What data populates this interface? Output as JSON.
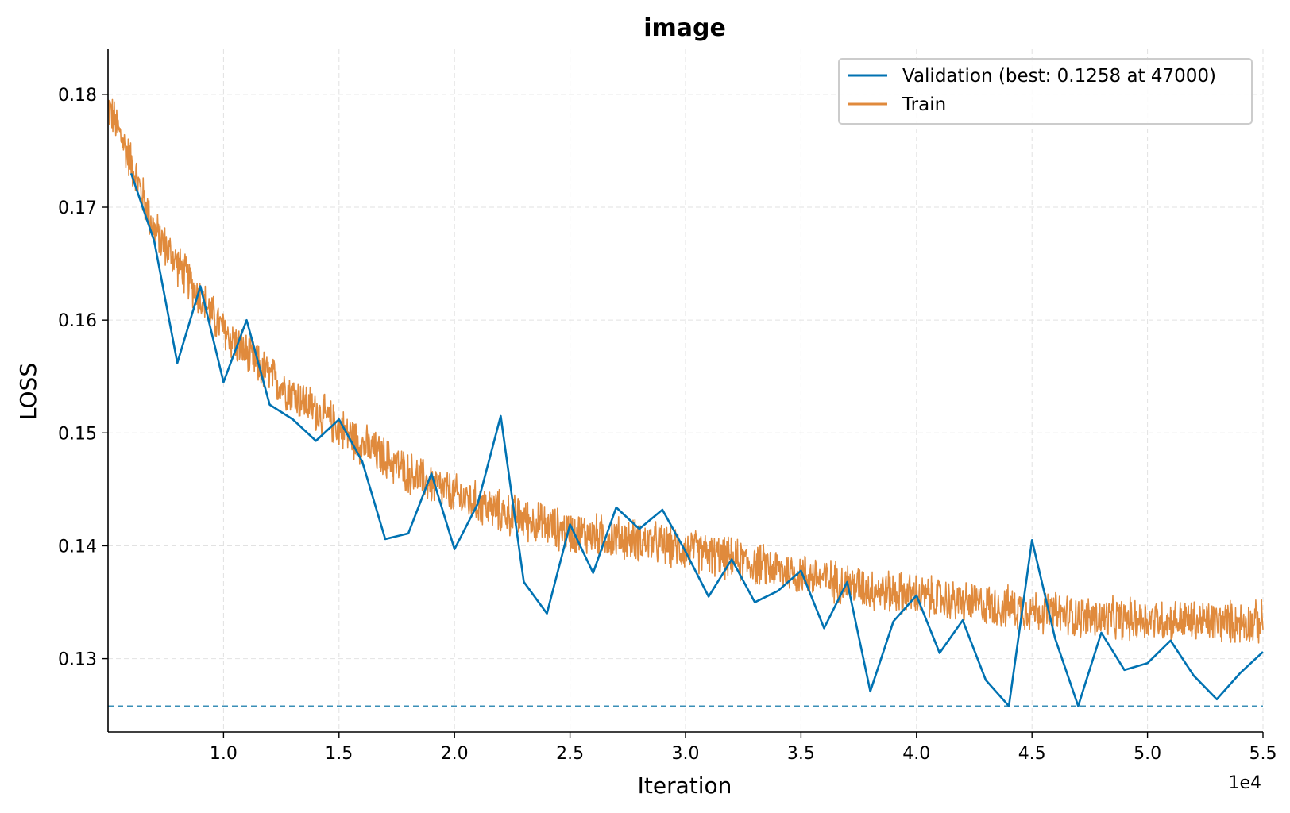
{
  "chart_data": {
    "type": "line",
    "title": "image",
    "xlabel": "Iteration",
    "ylabel": "LOSS",
    "x_scale_note": "1e4",
    "xlim": [
      5000,
      55000
    ],
    "ylim": [
      0.1235,
      0.184
    ],
    "x_ticks": [
      10000,
      15000,
      20000,
      25000,
      30000,
      35000,
      40000,
      45000,
      50000,
      55000
    ],
    "x_tick_labels": [
      "1.0",
      "1.5",
      "2.0",
      "2.5",
      "3.0",
      "3.5",
      "4.0",
      "4.5",
      "5.0",
      "5.5"
    ],
    "y_ticks": [
      0.13,
      0.14,
      0.15,
      0.16,
      0.17,
      0.18
    ],
    "y_tick_labels": [
      "0.13",
      "0.14",
      "0.15",
      "0.16",
      "0.17",
      "0.18"
    ],
    "grid": true,
    "legend_position": "top-right",
    "best_value": 0.1258,
    "series": [
      {
        "name": "Validation (best: 0.1258 at 47000)",
        "color": "#0072b2",
        "x": [
          6000,
          7000,
          8000,
          9000,
          10000,
          11000,
          12000,
          13000,
          14000,
          15000,
          16000,
          17000,
          18000,
          19000,
          20000,
          21000,
          22000,
          23000,
          24000,
          25000,
          26000,
          27000,
          28000,
          29000,
          30000,
          31000,
          32000,
          33000,
          34000,
          35000,
          36000,
          37000,
          38000,
          39000,
          40000,
          41000,
          42000,
          43000,
          44000,
          45000,
          46000,
          47000,
          48000,
          49000,
          50000,
          51000,
          52000,
          53000,
          54000,
          55000
        ],
        "y": [
          0.173,
          0.167,
          0.1562,
          0.163,
          0.1545,
          0.16,
          0.1525,
          0.1512,
          0.1493,
          0.1512,
          0.1475,
          0.1406,
          0.1411,
          0.1464,
          0.1397,
          0.1437,
          0.1515,
          0.1368,
          0.134,
          0.1419,
          0.1376,
          0.1434,
          0.1415,
          0.1432,
          0.1395,
          0.1355,
          0.1388,
          0.135,
          0.136,
          0.1378,
          0.1327,
          0.1368,
          0.1271,
          0.1333,
          0.1356,
          0.1305,
          0.1334,
          0.1281,
          0.1258,
          0.1405,
          0.1318,
          0.1258,
          0.1323,
          0.129,
          0.1296,
          0.1316,
          0.1285,
          0.1264,
          0.1287,
          0.1306
        ]
      },
      {
        "name": "Train",
        "color": "#e08a3c",
        "trend_x": [
          5000,
          6000,
          7000,
          8000,
          9000,
          10000,
          12000,
          14000,
          16000,
          18000,
          20000,
          22000,
          25000,
          28000,
          30000,
          32000,
          35000,
          38000,
          40000,
          42000,
          45000,
          48000,
          50000,
          52000,
          55000
        ],
        "trend_y": [
          0.179,
          0.174,
          0.168,
          0.165,
          0.162,
          0.159,
          0.155,
          0.152,
          0.149,
          0.1465,
          0.1445,
          0.143,
          0.1412,
          0.1405,
          0.1397,
          0.1388,
          0.1375,
          0.1362,
          0.1356,
          0.135,
          0.1343,
          0.1335,
          0.1335,
          0.1333,
          0.1332
        ],
        "noise_amplitude": 0.0018
      }
    ]
  }
}
